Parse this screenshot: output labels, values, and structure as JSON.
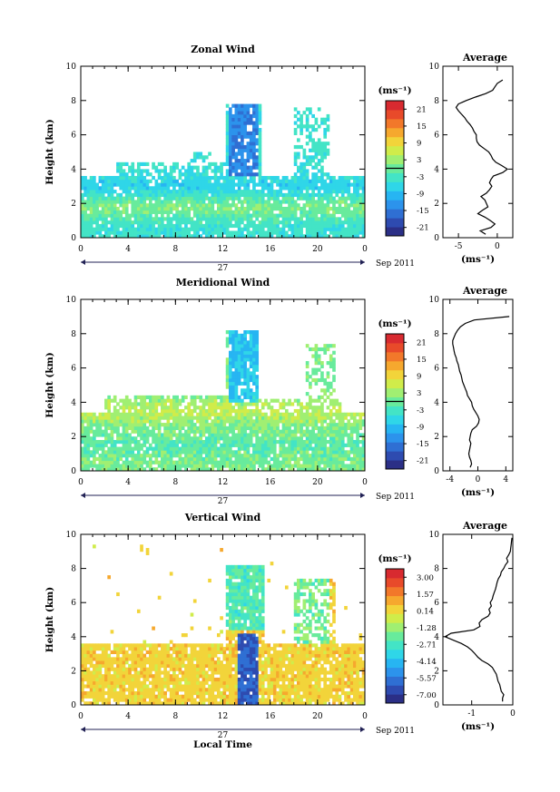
{
  "chart_data": [
    {
      "type": "heatmap",
      "title": "Zonal Wind",
      "ylabel": "Height (km)",
      "xlabel": "",
      "x_ticks": [
        "0",
        "4",
        "8",
        "12",
        "16",
        "20",
        "0"
      ],
      "y_ticks": [
        "0",
        "2",
        "4",
        "6",
        "8",
        "10"
      ],
      "xlim": [
        0,
        24
      ],
      "ylim": [
        0,
        10
      ],
      "date_label": "27",
      "date_suffix": "Sep 2011",
      "colorbar": {
        "unit": "(ms⁻¹)",
        "ticks": [
          "21",
          "15",
          "9",
          "3",
          "-3",
          "-9",
          "-15",
          "-21"
        ],
        "range": [
          -24,
          24
        ],
        "zero_line": 0
      },
      "average": {
        "title": "Average",
        "xlabel": "(ms⁻¹)",
        "x_ticks": [
          "-5",
          "0"
        ],
        "xlim": [
          -7,
          2
        ],
        "y_ticks": [
          "0",
          "2",
          "4",
          "6",
          "8",
          "10"
        ],
        "profile_heights": [
          0.2,
          0.4,
          0.6,
          0.8,
          1.0,
          1.2,
          1.4,
          1.6,
          1.8,
          2.0,
          2.2,
          2.4,
          2.6,
          2.8,
          3.0,
          3.2,
          3.4,
          3.6,
          3.8,
          4.0,
          4.2,
          4.4,
          4.6,
          4.8,
          5.0,
          5.2,
          5.4,
          5.6,
          5.8,
          6.0,
          6.2,
          6.4,
          6.6,
          6.8,
          7.0,
          7.2,
          7.4,
          7.6,
          7.8,
          8.0,
          8.2,
          8.4,
          8.6,
          8.8,
          9.0,
          9.2
        ],
        "profile_values": [
          -1.5,
          -2.2,
          -0.8,
          -0.3,
          -0.9,
          -1.6,
          -2.5,
          -1.9,
          -1.2,
          -1.4,
          -1.6,
          -2.1,
          -1.4,
          -1.0,
          -0.7,
          -1.0,
          -0.8,
          -0.5,
          0.7,
          1.3,
          0.6,
          -0.2,
          -0.6,
          -0.8,
          -1.1,
          -1.7,
          -2.3,
          -2.6,
          -2.7,
          -2.7,
          -3.0,
          -3.2,
          -3.5,
          -3.9,
          -4.2,
          -4.6,
          -5.0,
          -5.3,
          -5.0,
          -4.0,
          -2.8,
          -1.5,
          -0.6,
          -0.3,
          0.0,
          0.7
        ]
      }
    },
    {
      "type": "heatmap",
      "title": "Meridional Wind",
      "ylabel": "Height (km)",
      "xlabel": "",
      "x_ticks": [
        "0",
        "4",
        "8",
        "12",
        "16",
        "20",
        "0"
      ],
      "y_ticks": [
        "0",
        "2",
        "4",
        "6",
        "8",
        "10"
      ],
      "xlim": [
        0,
        24
      ],
      "ylim": [
        0,
        10
      ],
      "date_label": "27",
      "date_suffix": "Sep 2011",
      "colorbar": {
        "unit": "(ms⁻¹)",
        "ticks": [
          "21",
          "15",
          "9",
          "3",
          "-3",
          "-9",
          "-15",
          "-21"
        ],
        "range": [
          -24,
          24
        ],
        "zero_line": 0
      },
      "average": {
        "title": "Average",
        "xlabel": "(ms⁻¹)",
        "x_ticks": [
          "-4",
          "0",
          "4"
        ],
        "xlim": [
          -5,
          5
        ],
        "y_ticks": [
          "0",
          "2",
          "4",
          "6",
          "8",
          "10"
        ],
        "profile_heights": [
          0.2,
          0.4,
          0.6,
          0.8,
          1.0,
          1.2,
          1.4,
          1.6,
          1.8,
          2.0,
          2.2,
          2.4,
          2.6,
          2.8,
          3.0,
          3.2,
          3.4,
          3.6,
          3.8,
          4.0,
          4.2,
          4.4,
          4.6,
          4.8,
          5.0,
          5.2,
          5.4,
          5.6,
          5.8,
          6.0,
          6.2,
          6.4,
          6.6,
          6.8,
          7.0,
          7.2,
          7.4,
          7.6,
          7.8,
          8.0,
          8.2,
          8.4,
          8.6,
          8.8,
          9.0
        ],
        "profile_values": [
          -1.1,
          -0.9,
          -1.0,
          -1.2,
          -1.3,
          -1.2,
          -1.1,
          -1.0,
          -1.2,
          -1.1,
          -1.0,
          -0.8,
          -0.2,
          0.1,
          0.2,
          0.0,
          -0.3,
          -0.6,
          -0.8,
          -0.9,
          -1.2,
          -1.5,
          -1.6,
          -1.8,
          -2.0,
          -2.2,
          -2.3,
          -2.4,
          -2.6,
          -2.7,
          -2.8,
          -3.0,
          -3.1,
          -3.3,
          -3.4,
          -3.5,
          -3.6,
          -3.6,
          -3.4,
          -3.2,
          -2.9,
          -2.5,
          -1.8,
          -0.5,
          4.5
        ]
      }
    },
    {
      "type": "heatmap",
      "title": "Vertical Wind",
      "ylabel": "Height (km)",
      "xlabel": "Local Time",
      "x_ticks": [
        "0",
        "4",
        "8",
        "12",
        "16",
        "20",
        "0"
      ],
      "y_ticks": [
        "0",
        "2",
        "4",
        "6",
        "8",
        "10"
      ],
      "xlim": [
        0,
        24
      ],
      "ylim": [
        0,
        10
      ],
      "date_label": "27",
      "date_suffix": "Sep 2011",
      "colorbar": {
        "unit": "(ms⁻¹)",
        "ticks": [
          "3.00",
          "1.57",
          "0.14",
          "-1.28",
          "-2.71",
          "-4.14",
          "-5.57",
          "-7.00"
        ],
        "range": [
          -7.7,
          3.7
        ],
        "zero_line": null
      },
      "average": {
        "title": "Average",
        "xlabel": "(ms⁻¹)",
        "x_ticks": [
          "-1",
          "0"
        ],
        "xlim": [
          -1.7,
          0
        ],
        "y_ticks": [
          "0",
          "2",
          "4",
          "6",
          "8",
          "10"
        ],
        "profile_heights": [
          0.2,
          0.4,
          0.6,
          0.8,
          1.0,
          1.2,
          1.4,
          1.6,
          1.8,
          2.0,
          2.2,
          2.4,
          2.6,
          2.8,
          3.0,
          3.2,
          3.4,
          3.6,
          3.8,
          4.0,
          4.2,
          4.4,
          4.6,
          4.8,
          5.0,
          5.2,
          5.4,
          5.6,
          5.8,
          6.0,
          6.2,
          6.4,
          6.6,
          6.8,
          7.0,
          7.2,
          7.4,
          7.6,
          7.8,
          8.0,
          8.2,
          8.4,
          8.6,
          8.8,
          9.0,
          9.2,
          9.4,
          9.6,
          9.8
        ],
        "profile_values": [
          -0.25,
          -0.25,
          -0.22,
          -0.28,
          -0.3,
          -0.32,
          -0.36,
          -0.38,
          -0.4,
          -0.45,
          -0.5,
          -0.6,
          -0.75,
          -0.85,
          -0.92,
          -1.0,
          -1.1,
          -1.25,
          -1.45,
          -1.65,
          -1.5,
          -0.95,
          -0.8,
          -0.82,
          -0.75,
          -0.6,
          -0.55,
          -0.58,
          -0.52,
          -0.55,
          -0.5,
          -0.48,
          -0.45,
          -0.42,
          -0.4,
          -0.38,
          -0.35,
          -0.3,
          -0.28,
          -0.22,
          -0.18,
          -0.12,
          -0.15,
          -0.1,
          -0.06,
          -0.05,
          -0.04,
          -0.03,
          -0.02
        ]
      }
    }
  ]
}
